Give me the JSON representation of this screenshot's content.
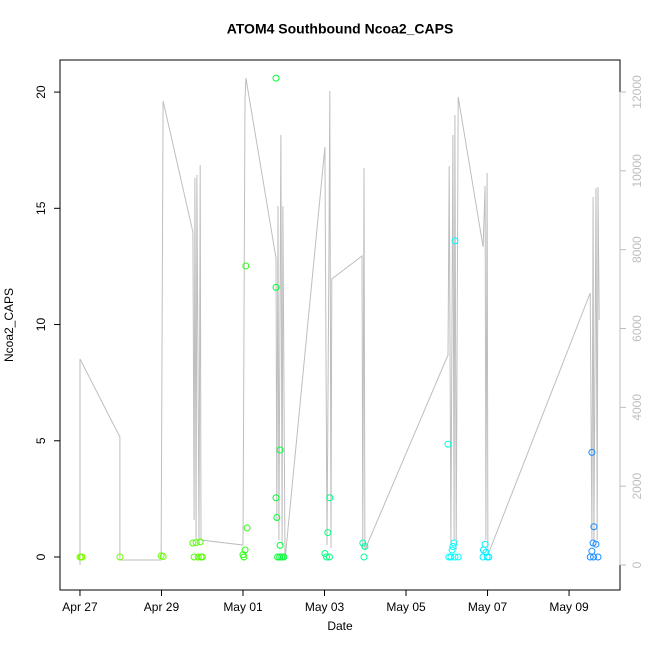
{
  "chart_data": {
    "type": "scatter",
    "title": "ATOM4 Southbound Ncoa2_CAPS",
    "xlabel": "Date",
    "ylabel": "Ncoa2_CAPS",
    "xlim": [
      -0.49,
      13.25
    ],
    "xticks": [
      {
        "value": 0,
        "label": "Apr 27"
      },
      {
        "value": 2,
        "label": "Apr 29"
      },
      {
        "value": 4,
        "label": "May 01"
      },
      {
        "value": 6,
        "label": "May 03"
      },
      {
        "value": 8,
        "label": "May 05"
      },
      {
        "value": 10,
        "label": "May 07"
      },
      {
        "value": 12,
        "label": "May 09"
      }
    ],
    "ylim": [
      -1.42,
      21.38
    ],
    "yticks": [
      0,
      5,
      10,
      15,
      20
    ],
    "y2lim": [
      -634,
      12812
    ],
    "y2ticks": [
      0,
      2000,
      4000,
      6000,
      8000,
      10000,
      12000
    ],
    "x": [
      0.0,
      0.03,
      0.05,
      0.98,
      1.99,
      2.04,
      2.77,
      2.85,
      2.8,
      2.9,
      2.95,
      2.97,
      3.0,
      4.0,
      4.05,
      4.1,
      4.07,
      4.02,
      4.81,
      4.81,
      4.81,
      4.83,
      4.91,
      4.91,
      4.85,
      4.9,
      4.95,
      5.0,
      6.01,
      6.08,
      6.13,
      6.05,
      6.12,
      6.94,
      6.99,
      6.97,
      9.03,
      9.2,
      9.18,
      9.15,
      9.13,
      9.05,
      9.1,
      9.2,
      9.28,
      9.94,
      9.9,
      9.96,
      9.89,
      9.99,
      10.03,
      12.56,
      12.61,
      12.59,
      12.66,
      12.56,
      12.52,
      12.6,
      12.71
    ],
    "values": [
      0,
      0,
      0,
      0,
      0.05,
      0.02,
      0.6,
      0.62,
      0,
      0,
      0.65,
      0,
      0,
      0.1,
      0.3,
      1.25,
      12.52,
      0,
      20.6,
      11.6,
      2.55,
      1.7,
      4.6,
      0.5,
      0,
      0,
      0,
      0,
      0.15,
      1.05,
      2.55,
      0,
      0,
      0.6,
      0.45,
      0,
      4.85,
      13.6,
      0.6,
      0.45,
      0.3,
      0,
      0,
      0,
      0,
      0.55,
      0.3,
      0.2,
      0,
      0,
      0,
      4.5,
      1.3,
      0.6,
      0.55,
      0.25,
      0,
      0,
      0
    ],
    "colors": [
      "#80ff00",
      "#80ff00",
      "#80ff00",
      "#73ff00",
      "#66ff00",
      "#66ff00",
      "#55ff00",
      "#55ff00",
      "#55ff00",
      "#55ff00",
      "#55ff00",
      "#55ff00",
      "#55ff00",
      "#26ff0d",
      "#26ff0d",
      "#26ff0d",
      "#26ff0d",
      "#26ff0d",
      "#00ff33",
      "#00ff33",
      "#00ff33",
      "#00ff33",
      "#00ff33",
      "#00ff33",
      "#00ff33",
      "#00ff33",
      "#00ff33",
      "#00ff33",
      "#00ff80",
      "#00ff80",
      "#00ff80",
      "#00ff80",
      "#00ff80",
      "#00ffa0",
      "#00ffa0",
      "#00ffa0",
      "#00ffe6",
      "#00ffff",
      "#00ffff",
      "#00ffff",
      "#00ffff",
      "#00ffff",
      "#00ffff",
      "#00ffff",
      "#00ffff",
      "#00f0ff",
      "#00f0ff",
      "#00f0ff",
      "#00f0ff",
      "#00f0ff",
      "#00f0ff",
      "#1a8cff",
      "#1a8cff",
      "#1a8cff",
      "#1a8cff",
      "#1a8cff",
      "#1a8cff",
      "#1a8cff",
      "#1a8cff"
    ],
    "line": {
      "axis": "y2",
      "color": "#bebebe",
      "x": [
        0,
        0,
        0.98,
        0.98,
        1.99,
        2.04,
        2.77,
        2.8,
        2.82,
        2.85,
        2.87,
        2.92,
        2.95,
        2.97,
        4.0,
        4.05,
        4.07,
        4.81,
        4.83,
        4.86,
        4.88,
        4.93,
        4.96,
        4.98,
        5.03,
        6.01,
        6.06,
        6.11,
        6.13,
        6.16,
        6.18,
        6.92,
        6.94,
        6.97,
        6.99,
        9.03,
        9.06,
        9.1,
        9.15,
        9.18,
        9.2,
        9.23,
        9.28,
        9.89,
        9.94,
        9.96,
        9.99,
        10.01,
        12.52,
        12.56,
        12.59,
        12.61,
        12.66,
        12.69,
        12.71,
        12.74
      ],
      "values": [
        0,
        5226,
        3247,
        127,
        127,
        11772,
        8448,
        1142,
        9818,
        634,
        9894,
        507,
        10148,
        634,
        507,
        11797,
        12355,
        7789,
        1142,
        9108,
        634,
        10909,
        507,
        9108,
        127,
        10605,
        507,
        8118,
        12025,
        431,
        7256,
        7839,
        431,
        10072,
        381,
        5328,
        10123,
        507,
        10909,
        634,
        11417,
        381,
        11873,
        8068,
        9615,
        634,
        9945,
        254,
        6901,
        634,
        9336,
        507,
        9564,
        634,
        9590,
        6216
      ]
    }
  }
}
